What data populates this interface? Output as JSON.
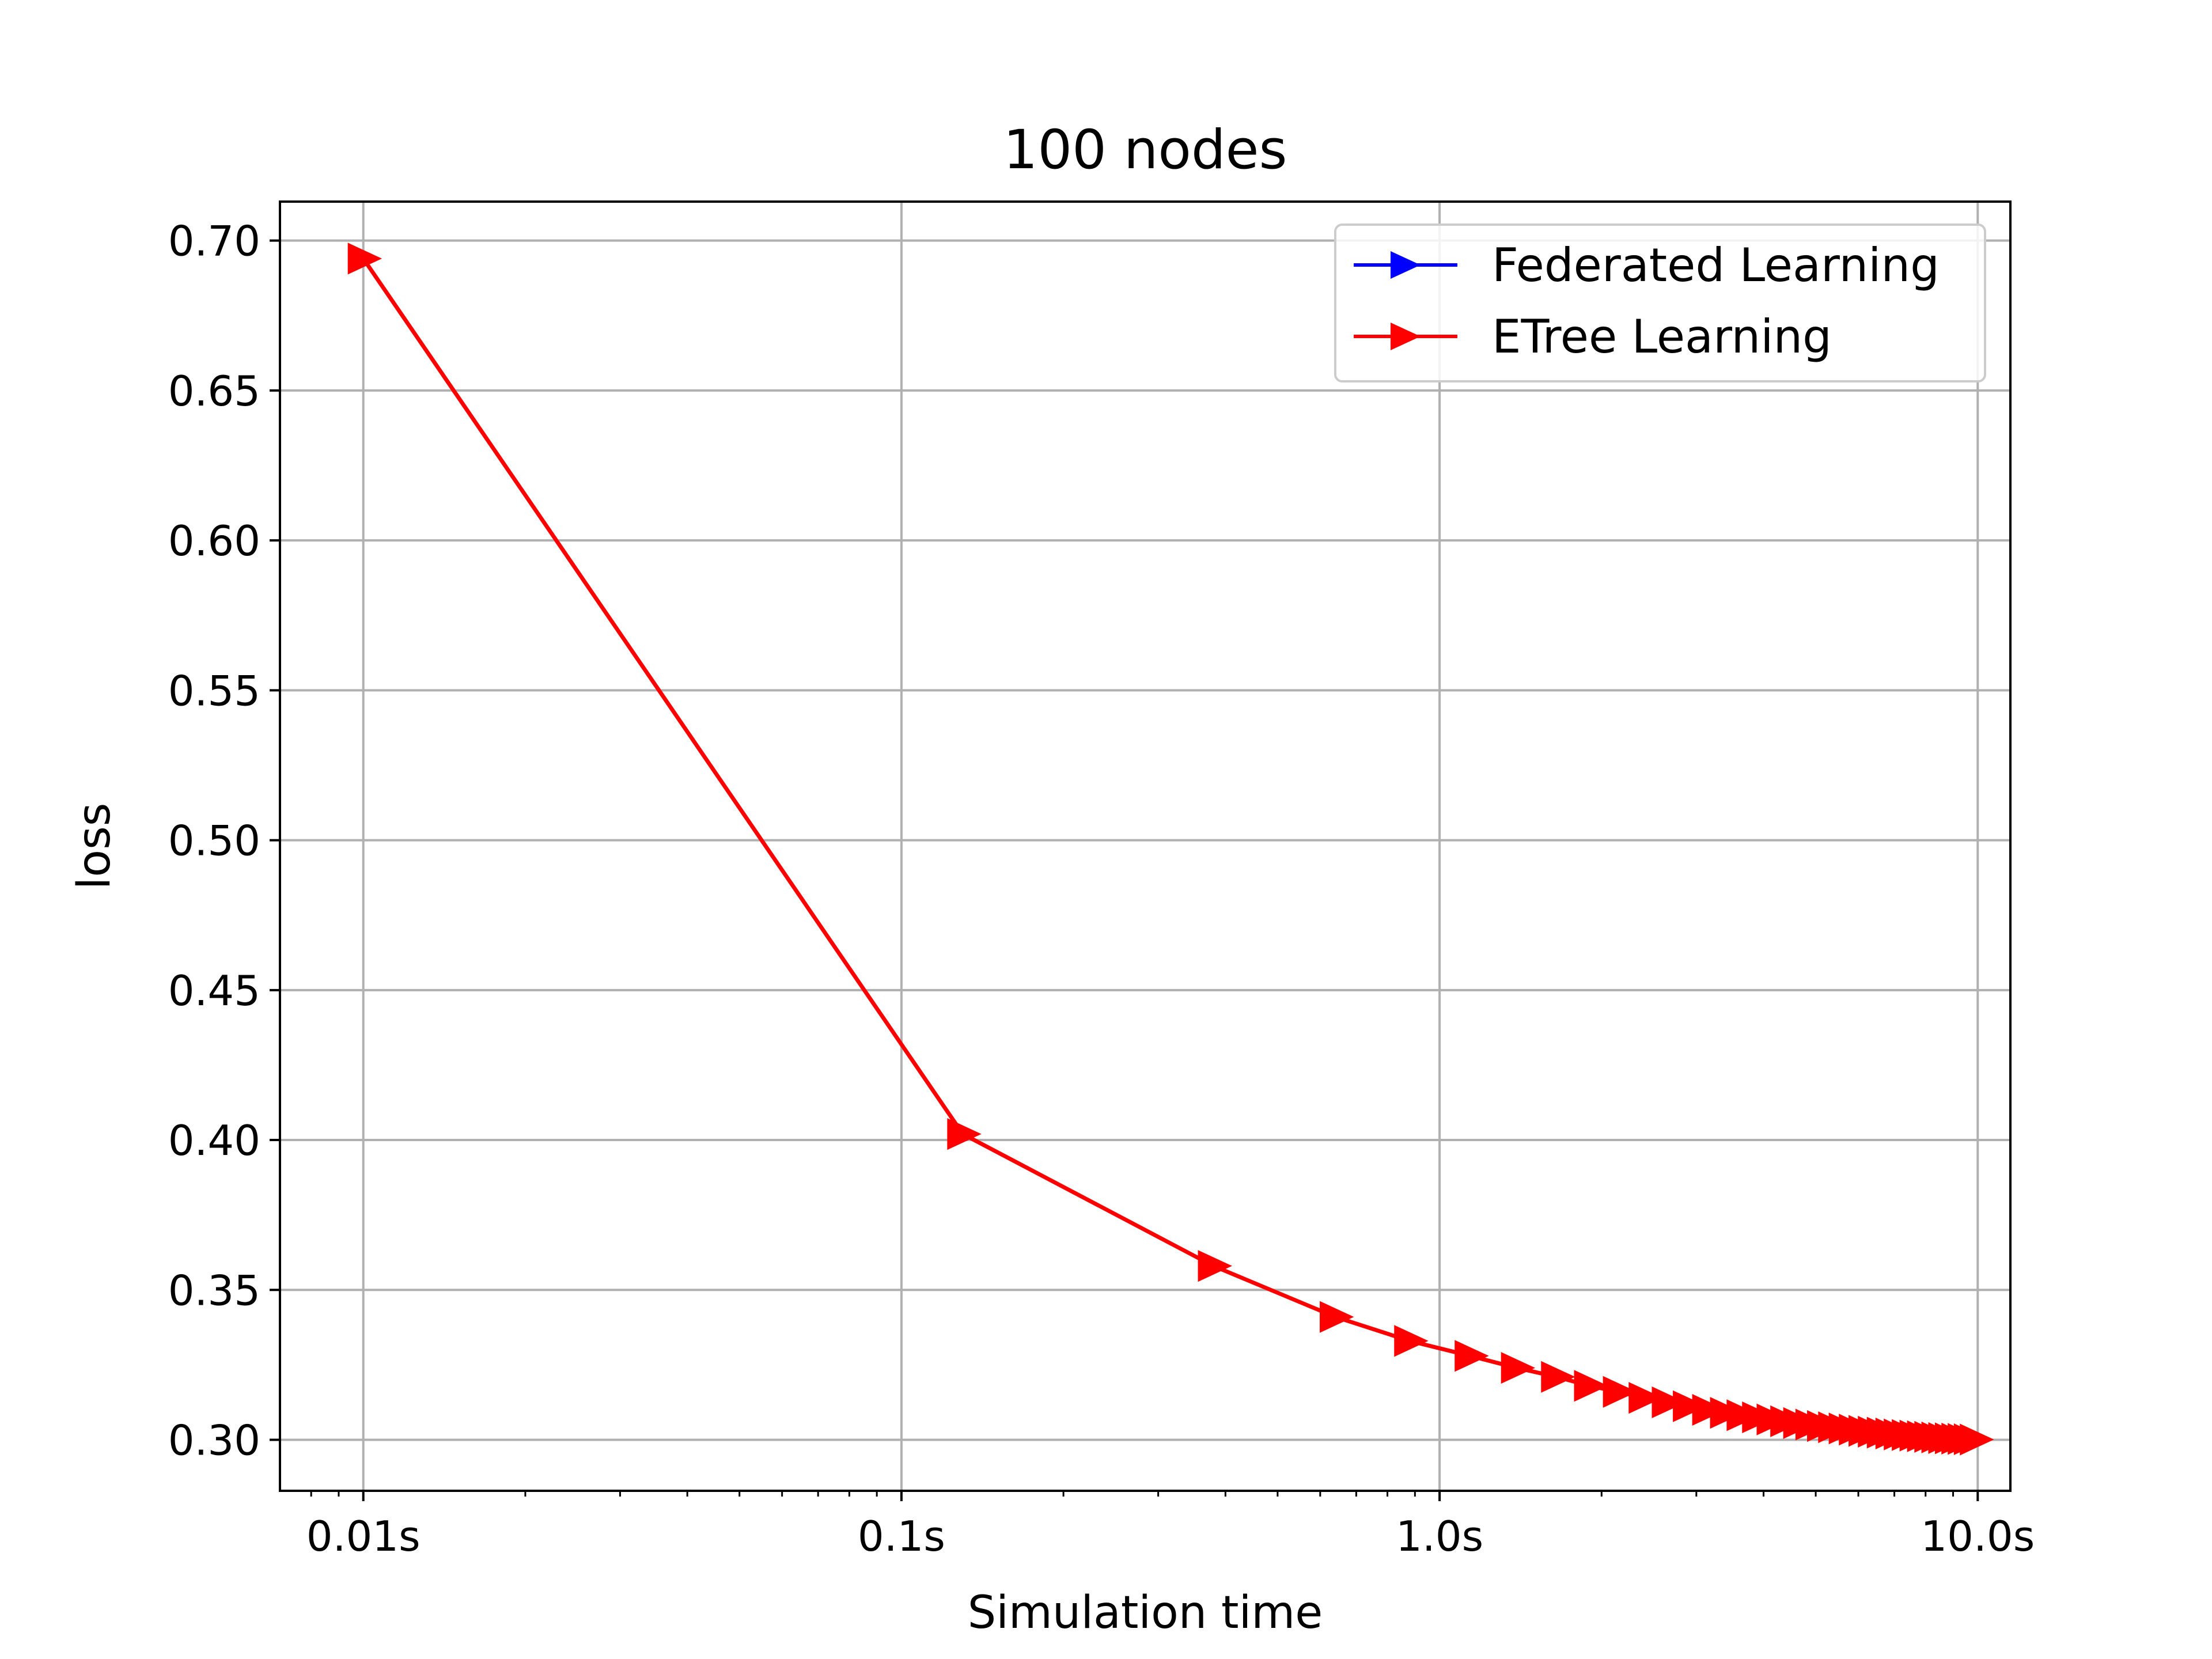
{
  "chart_data": {
    "type": "line",
    "title": "100 nodes",
    "xlabel": "Simulation time",
    "ylabel": "loss",
    "x_scale": "log",
    "xlim": [
      0.007,
      11.5
    ],
    "ylim": [
      0.283,
      0.713
    ],
    "x_ticks": [
      {
        "value": 0.01,
        "label": "0.01s"
      },
      {
        "value": 0.1,
        "label": "0.1s"
      },
      {
        "value": 1.0,
        "label": "1.0s"
      },
      {
        "value": 10.0,
        "label": "10.0s"
      }
    ],
    "y_ticks": [
      {
        "value": 0.3,
        "label": "0.30"
      },
      {
        "value": 0.35,
        "label": "0.35"
      },
      {
        "value": 0.4,
        "label": "0.40"
      },
      {
        "value": 0.45,
        "label": "0.45"
      },
      {
        "value": 0.5,
        "label": "0.50"
      },
      {
        "value": 0.55,
        "label": "0.55"
      },
      {
        "value": 0.6,
        "label": "0.60"
      },
      {
        "value": 0.65,
        "label": "0.65"
      },
      {
        "value": 0.7,
        "label": "0.70"
      }
    ],
    "grid": true,
    "legend_position": "top-right",
    "series": [
      {
        "name": "Federated Learning",
        "color": "#0000ff",
        "marker": "triangle-right",
        "x": [],
        "y": []
      },
      {
        "name": "ETree Learning",
        "color": "#ff0000",
        "marker": "triangle-right",
        "x": [
          0.01,
          0.13,
          0.38,
          0.64,
          0.88,
          1.14,
          1.39,
          1.65,
          1.9,
          2.15,
          2.4,
          2.65,
          2.9,
          3.15,
          3.4,
          3.65,
          3.9,
          4.15,
          4.4,
          4.65,
          4.9,
          5.15,
          5.4,
          5.65,
          5.9,
          6.15,
          6.4,
          6.65,
          6.9,
          7.15,
          7.4,
          7.65,
          7.9,
          8.15,
          8.4,
          8.65,
          8.9,
          9.15,
          9.4,
          9.65,
          9.9
        ],
        "y": [
          0.694,
          0.402,
          0.358,
          0.341,
          0.333,
          0.328,
          0.324,
          0.321,
          0.318,
          0.316,
          0.314,
          0.3125,
          0.3112,
          0.31,
          0.309,
          0.3082,
          0.3075,
          0.3068,
          0.3062,
          0.3056,
          0.3051,
          0.3046,
          0.3042,
          0.3038,
          0.3034,
          0.303,
          0.3027,
          0.3024,
          0.3021,
          0.3018,
          0.3016,
          0.3014,
          0.3012,
          0.301,
          0.3008,
          0.3006,
          0.3005,
          0.3004,
          0.3003,
          0.3002,
          0.3001
        ]
      }
    ]
  }
}
